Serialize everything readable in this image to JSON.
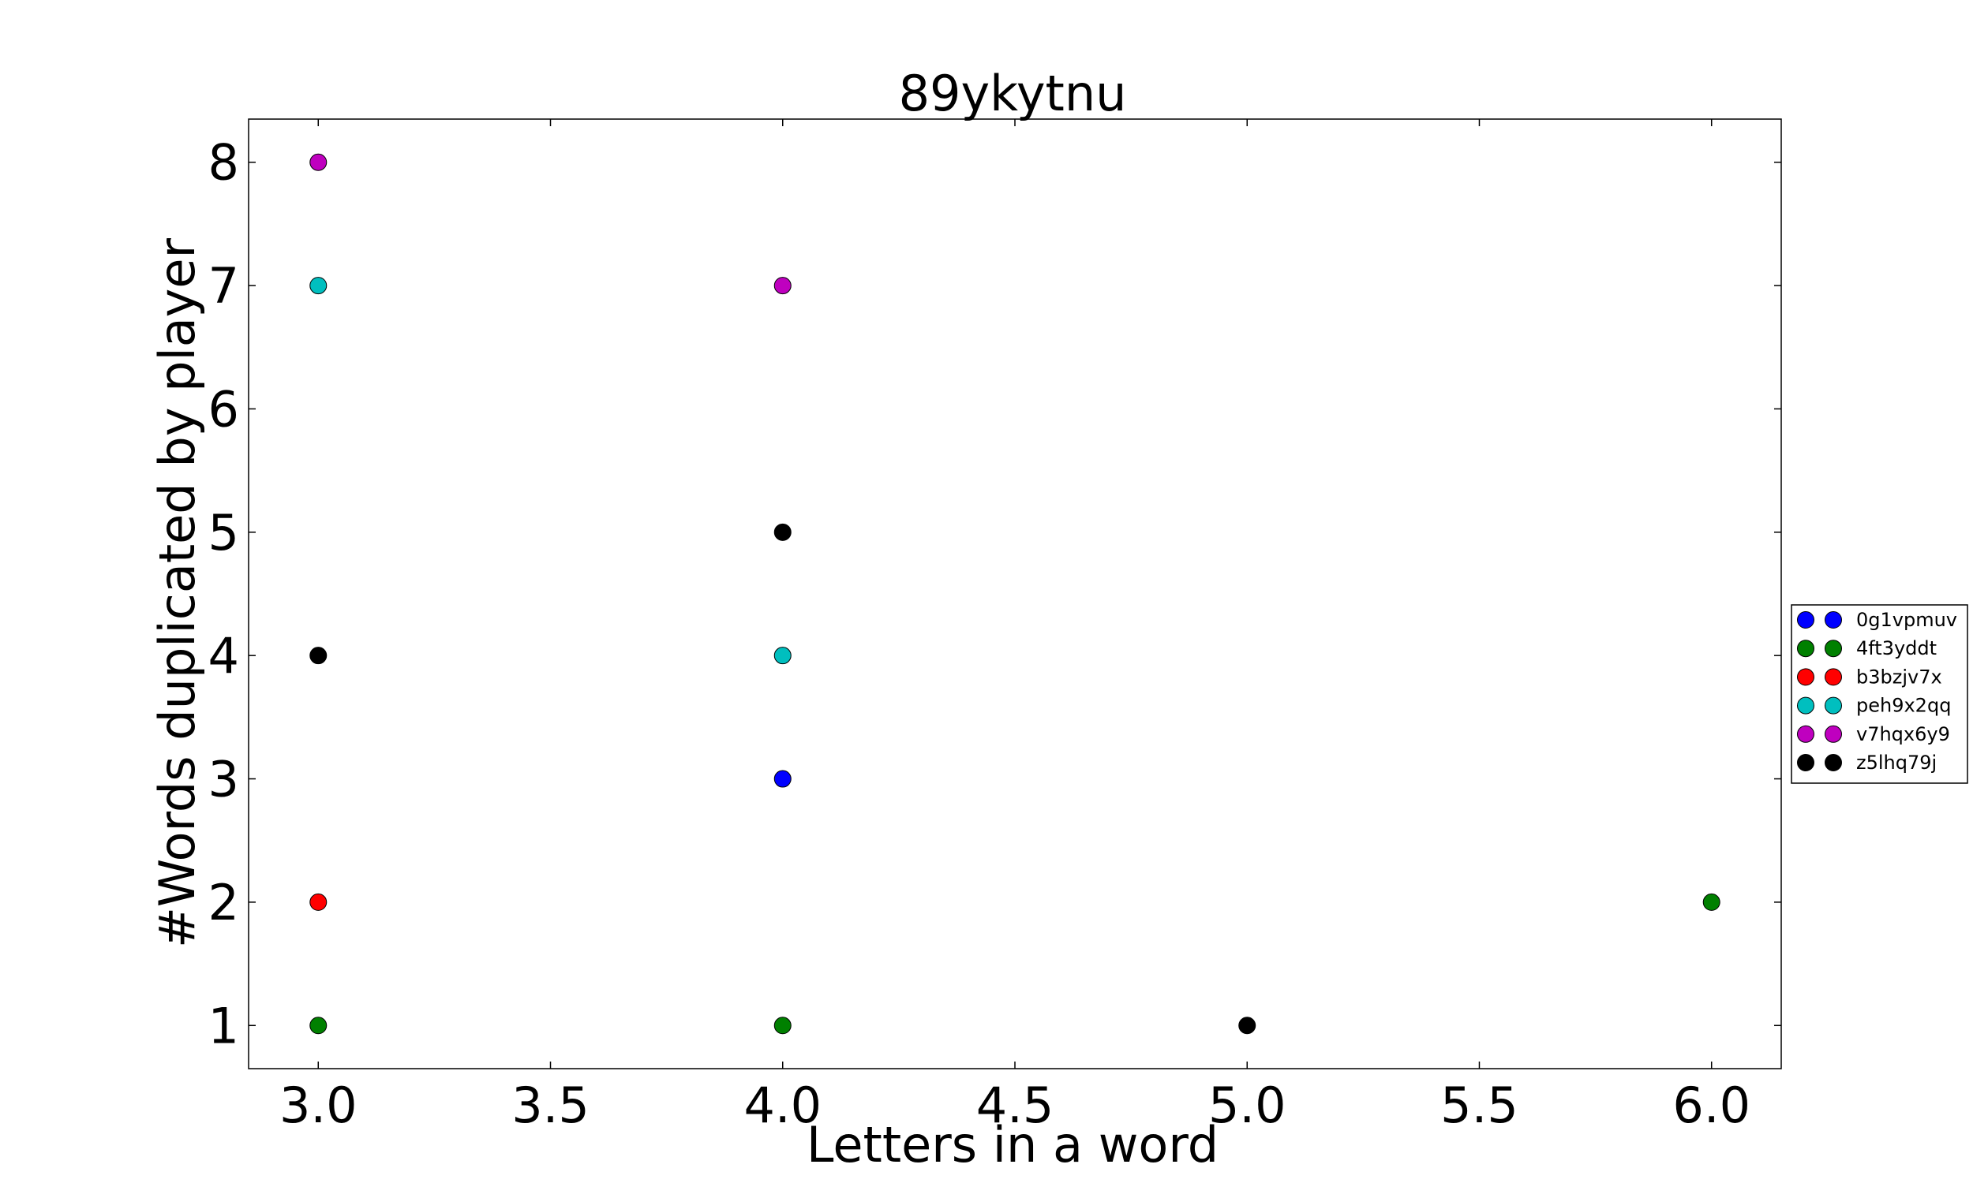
{
  "chart_data": {
    "type": "scatter",
    "title": "89ykytnu",
    "xlabel": "Letters in a word",
    "ylabel": "#Words duplicated by player",
    "xlim": [
      2.85,
      6.15
    ],
    "ylim": [
      0.65,
      8.35
    ],
    "xticks": [
      3.0,
      3.5,
      4.0,
      4.5,
      5.0,
      5.5,
      6.0
    ],
    "xtick_labels": [
      "3.0",
      "3.5",
      "4.0",
      "4.5",
      "5.0",
      "5.5",
      "6.0"
    ],
    "yticks": [
      1,
      2,
      3,
      4,
      5,
      6,
      7,
      8
    ],
    "ytick_labels": [
      "1",
      "2",
      "3",
      "4",
      "5",
      "6",
      "7",
      "8"
    ],
    "grid": false,
    "legend_position": "right",
    "series": [
      {
        "name": "0g1vpmuv",
        "color": "#0000ff",
        "points": [
          [
            4,
            3
          ]
        ]
      },
      {
        "name": "4ft3yddt",
        "color": "#008000",
        "points": [
          [
            3,
            1
          ],
          [
            4,
            1
          ],
          [
            6,
            2
          ]
        ]
      },
      {
        "name": "b3bzjv7x",
        "color": "#ff0000",
        "points": [
          [
            3,
            2
          ]
        ]
      },
      {
        "name": "peh9x2qq",
        "color": "#00bfbf",
        "points": [
          [
            3,
            7
          ],
          [
            4,
            4
          ]
        ]
      },
      {
        "name": "v7hqx6y9",
        "color": "#bf00bf",
        "points": [
          [
            3,
            8
          ],
          [
            4,
            7
          ]
        ]
      },
      {
        "name": "z5lhq79j",
        "color": "#000000",
        "points": [
          [
            3,
            4
          ],
          [
            4,
            5
          ],
          [
            5,
            1
          ]
        ]
      }
    ]
  }
}
